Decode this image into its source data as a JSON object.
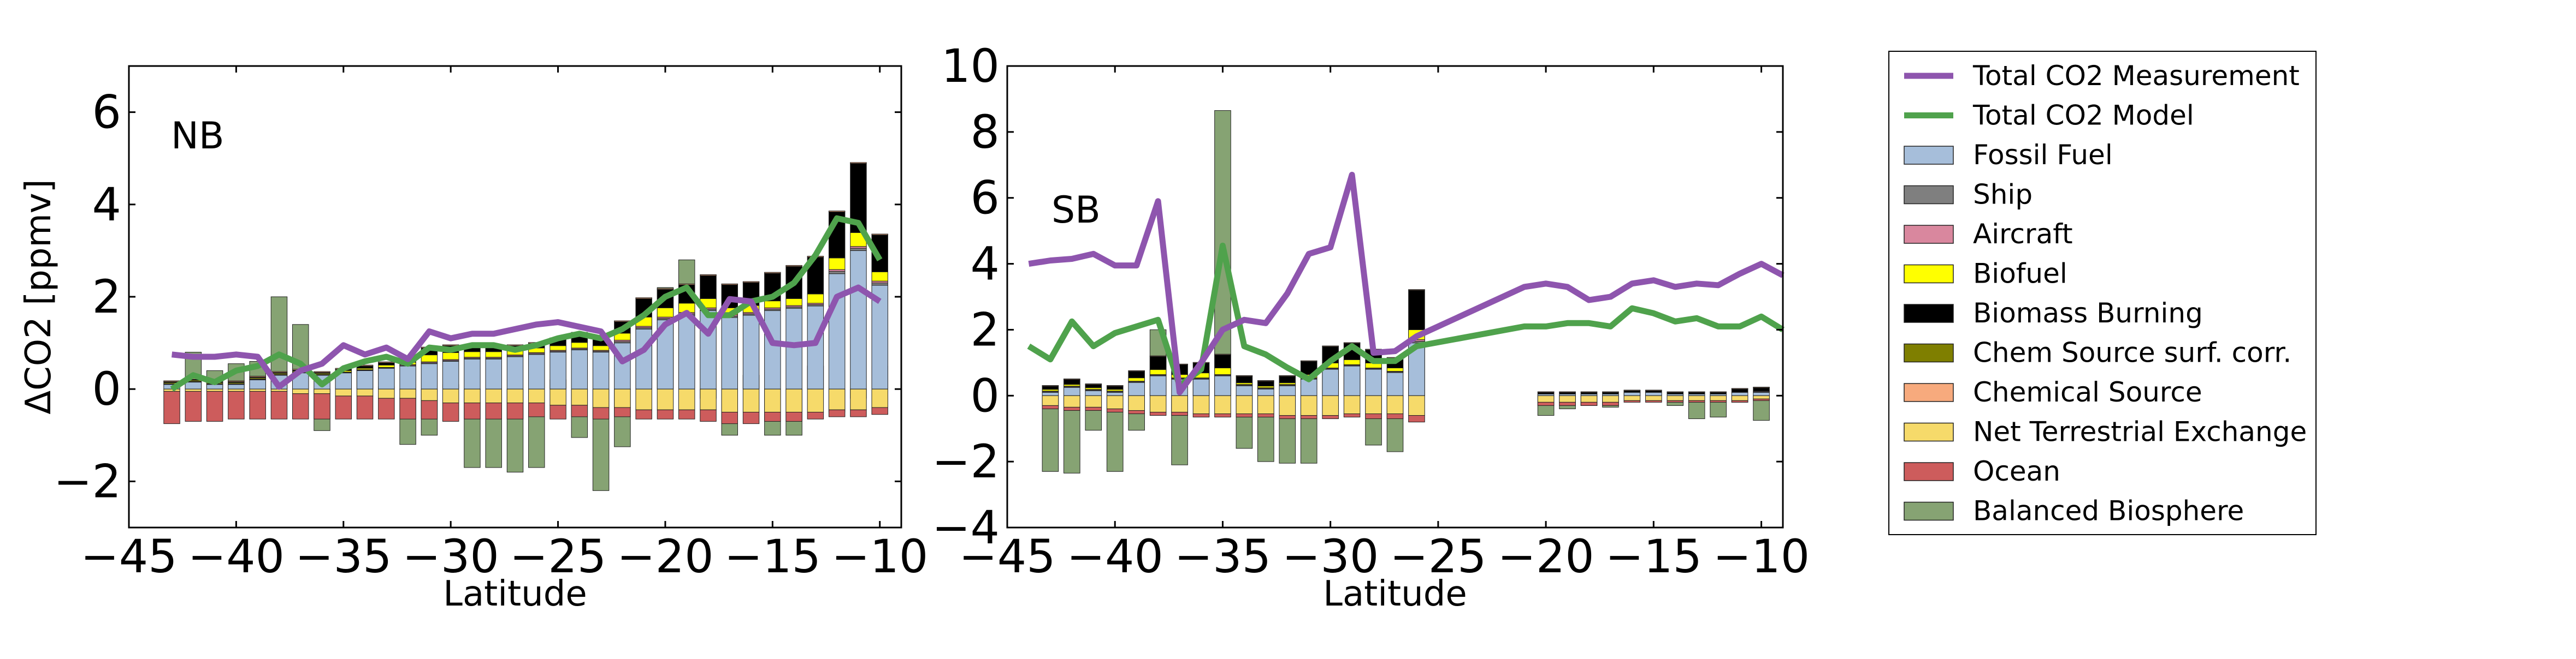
{
  "colors": {
    "measurement": "#8E55AE",
    "model": "#4FA24C",
    "fossil_fuel": "#A6BEDA",
    "ship": "#7F7F7F",
    "aircraft": "#D9879E",
    "biofuel": "#FFFF00",
    "biomass_burning": "#000000",
    "chem_surf_corr": "#7F7F00",
    "chemical_source": "#F7AA7D",
    "net_terrestrial": "#F6DA6A",
    "ocean": "#CD5C5C",
    "balanced_biosphere": "#86A373"
  },
  "legend": {
    "placement": "right, outside plots",
    "entries": [
      {
        "label": "Total CO2 Measurement",
        "kind": "line",
        "color_key": "measurement"
      },
      {
        "label": "Total CO2 Model",
        "kind": "line",
        "color_key": "model"
      },
      {
        "label": "Fossil Fuel",
        "kind": "patch",
        "color_key": "fossil_fuel"
      },
      {
        "label": "Ship",
        "kind": "patch",
        "color_key": "ship"
      },
      {
        "label": "Aircraft",
        "kind": "patch",
        "color_key": "aircraft"
      },
      {
        "label": "Biofuel",
        "kind": "patch",
        "color_key": "biofuel"
      },
      {
        "label": "Biomass Burning",
        "kind": "patch",
        "color_key": "biomass_burning"
      },
      {
        "label": "Chem Source surf. corr.",
        "kind": "patch",
        "color_key": "chem_surf_corr"
      },
      {
        "label": "Chemical Source",
        "kind": "patch",
        "color_key": "chemical_source"
      },
      {
        "label": "Net Terrestrial Exchange",
        "kind": "patch",
        "color_key": "net_terrestrial"
      },
      {
        "label": "Ocean",
        "kind": "patch",
        "color_key": "ocean"
      },
      {
        "label": "Balanced Biosphere",
        "kind": "patch",
        "color_key": "balanced_biosphere"
      }
    ]
  },
  "chart_data": [
    {
      "type": "bar",
      "panel_label": "NB",
      "xlabel": "Latitude",
      "ylabel": "ΔCO2 [ppmv]",
      "xlim": [
        -45,
        -9
      ],
      "ylim": [
        -3,
        7
      ],
      "xticks": [
        -45,
        -40,
        -35,
        -30,
        -25,
        -20,
        -15,
        -10
      ],
      "yticks": [
        -2,
        0,
        2,
        4,
        6
      ],
      "grid": false,
      "bar_width": 0.75,
      "x": [
        -43,
        -42,
        -41,
        -40,
        -39,
        -38,
        -37,
        -36,
        -35,
        -34,
        -33,
        -32,
        -31,
        -30,
        -29,
        -28,
        -27,
        -26,
        -25,
        -24,
        -23,
        -22,
        -21,
        -20,
        -19,
        -18,
        -17,
        -16,
        -15,
        -14,
        -13,
        -12,
        -11,
        -10
      ],
      "stacks": {
        "fossil_fuel": [
          0.1,
          0.15,
          0.1,
          0.1,
          0.2,
          0.3,
          0.35,
          0.3,
          0.35,
          0.4,
          0.45,
          0.5,
          0.55,
          0.6,
          0.65,
          0.65,
          0.7,
          0.75,
          0.8,
          0.85,
          0.8,
          1.0,
          1.3,
          1.5,
          1.6,
          1.7,
          1.55,
          1.6,
          1.7,
          1.75,
          1.8,
          2.5,
          3.0,
          2.25
        ],
        "ship": [
          0.01,
          0.01,
          0.01,
          0.01,
          0.01,
          0.01,
          0.01,
          0.01,
          0.01,
          0.01,
          0.01,
          0.01,
          0.02,
          0.02,
          0.02,
          0.02,
          0.02,
          0.02,
          0.02,
          0.02,
          0.02,
          0.03,
          0.03,
          0.03,
          0.03,
          0.03,
          0.03,
          0.03,
          0.03,
          0.03,
          0.03,
          0.05,
          0.05,
          0.05
        ],
        "aircraft": [
          0.01,
          0.01,
          0.01,
          0.01,
          0.01,
          0.01,
          0.01,
          0.01,
          0.01,
          0.01,
          0.01,
          0.02,
          0.02,
          0.02,
          0.02,
          0.02,
          0.02,
          0.02,
          0.02,
          0.02,
          0.02,
          0.03,
          0.03,
          0.03,
          0.03,
          0.03,
          0.03,
          0.03,
          0.03,
          0.03,
          0.03,
          0.04,
          0.04,
          0.04
        ],
        "biofuel": [
          0.02,
          0.02,
          0.02,
          0.02,
          0.02,
          0.02,
          0.02,
          0.02,
          0.03,
          0.03,
          0.05,
          0.05,
          0.15,
          0.15,
          0.12,
          0.12,
          0.1,
          0.1,
          0.1,
          0.12,
          0.1,
          0.15,
          0.2,
          0.2,
          0.2,
          0.2,
          0.15,
          0.15,
          0.15,
          0.15,
          0.2,
          0.25,
          0.3,
          0.2
        ],
        "biomass_burning": [
          0.02,
          0.02,
          0.02,
          0.02,
          0.02,
          0.02,
          0.02,
          0.02,
          0.03,
          0.05,
          0.05,
          0.08,
          0.15,
          0.15,
          0.12,
          0.12,
          0.1,
          0.1,
          0.15,
          0.2,
          0.15,
          0.25,
          0.4,
          0.4,
          0.4,
          0.5,
          0.5,
          0.5,
          0.6,
          0.7,
          0.8,
          1.0,
          1.5,
          0.8
        ],
        "chem_surf_corr": [
          0,
          0,
          0,
          0,
          0,
          0,
          0,
          0,
          0,
          0,
          0,
          0,
          0,
          0,
          0,
          0,
          0,
          0,
          0,
          0,
          0,
          0,
          0,
          0,
          0,
          0,
          0,
          0,
          0,
          0,
          0,
          0,
          0,
          0
        ],
        "chemical_source": [
          0.02,
          0.02,
          0.02,
          0.02,
          0.02,
          0.02,
          0.02,
          0.02,
          0.02,
          0.02,
          0.02,
          0.02,
          0.02,
          0.02,
          0.02,
          0.02,
          0.02,
          0.02,
          0.02,
          0.02,
          0.02,
          0.02,
          0.02,
          0.02,
          0.02,
          0.02,
          0.02,
          0.02,
          0.02,
          0.02,
          0.02,
          0.02,
          0.02,
          0.02
        ],
        "net_terrestrial": [
          -0.05,
          -0.05,
          -0.05,
          -0.05,
          -0.05,
          -0.05,
          -0.1,
          -0.1,
          -0.15,
          -0.15,
          -0.2,
          -0.2,
          -0.25,
          -0.3,
          -0.3,
          -0.3,
          -0.3,
          -0.3,
          -0.35,
          -0.35,
          -0.4,
          -0.4,
          -0.45,
          -0.45,
          -0.45,
          -0.45,
          -0.5,
          -0.5,
          -0.5,
          -0.5,
          -0.5,
          -0.45,
          -0.45,
          -0.4
        ],
        "ocean": [
          -0.7,
          -0.65,
          -0.65,
          -0.6,
          -0.6,
          -0.6,
          -0.55,
          -0.55,
          -0.5,
          -0.5,
          -0.45,
          -0.45,
          -0.4,
          -0.4,
          -0.35,
          -0.35,
          -0.35,
          -0.3,
          -0.3,
          -0.25,
          -0.25,
          -0.2,
          -0.2,
          -0.2,
          -0.2,
          -0.25,
          -0.25,
          -0.25,
          -0.2,
          -0.2,
          -0.15,
          -0.15,
          -0.15,
          -0.15
        ],
        "balanced_biosphere": [
          0,
          0.8,
          0.4,
          0.55,
          0.6,
          2.0,
          1.4,
          -0.9,
          0.3,
          0.5,
          0.05,
          -1.2,
          -1.0,
          0.1,
          -1.7,
          -1.7,
          -1.8,
          -1.7,
          0.2,
          -1.05,
          -2.2,
          -1.25,
          1.5,
          2.2,
          2.8,
          -0.2,
          -1.0,
          0.3,
          -1.0,
          -1.0,
          0.5,
          -0.5,
          -0.2,
          0.5
        ]
      },
      "series": [
        {
          "name": "Total CO2 Measurement",
          "color_key": "measurement",
          "x": [
            -43,
            -42,
            -41,
            -40,
            -39,
            -38,
            -37,
            -36,
            -35,
            -34,
            -33,
            -32,
            -31,
            -30,
            -29,
            -28,
            -27,
            -26,
            -25,
            -24,
            -23,
            -22,
            -21,
            -20,
            -19,
            -18,
            -17,
            -16,
            -15,
            -14,
            -13,
            -12,
            -11,
            -10
          ],
          "y": [
            0.75,
            0.7,
            0.7,
            0.75,
            0.7,
            0.05,
            0.4,
            0.55,
            0.95,
            0.75,
            0.9,
            0.65,
            1.25,
            1.1,
            1.2,
            1.2,
            1.3,
            1.4,
            1.45,
            1.35,
            1.25,
            0.6,
            0.85,
            1.4,
            1.65,
            1.2,
            1.95,
            1.9,
            1.0,
            0.95,
            1.0,
            2.0,
            2.2,
            1.9
          ]
        },
        {
          "name": "Total CO2 Model",
          "color_key": "model",
          "x": [
            -43,
            -42,
            -41,
            -40,
            -39,
            -38,
            -37,
            -36,
            -35,
            -34,
            -33,
            -32,
            -31,
            -30,
            -29,
            -28,
            -27,
            -26,
            -25,
            -24,
            -23,
            -22,
            -21,
            -20,
            -19,
            -18,
            -17,
            -16,
            -15,
            -14,
            -13,
            -12,
            -11,
            -10
          ],
          "y": [
            0.0,
            0.3,
            0.15,
            0.4,
            0.5,
            0.75,
            0.55,
            0.1,
            0.45,
            0.6,
            0.7,
            0.55,
            0.9,
            0.85,
            0.95,
            0.95,
            0.85,
            0.95,
            1.1,
            1.2,
            1.1,
            1.3,
            1.6,
            2.0,
            2.2,
            1.6,
            1.6,
            1.9,
            2.0,
            2.3,
            2.9,
            3.7,
            3.6,
            2.8
          ]
        }
      ]
    },
    {
      "type": "bar",
      "panel_label": "SB",
      "xlabel": "Latitude",
      "ylabel": "",
      "xlim": [
        -45,
        -9
      ],
      "ylim": [
        -4,
        10
      ],
      "xticks": [
        -45,
        -40,
        -35,
        -30,
        -25,
        -20,
        -15,
        -10
      ],
      "yticks": [
        -4,
        -2,
        0,
        2,
        4,
        6,
        8,
        10
      ],
      "grid": false,
      "bar_width": 0.75,
      "x": [
        -43,
        -42,
        -41,
        -40,
        -39,
        -38,
        -37,
        -36,
        -35,
        -34,
        -33,
        -32,
        -31,
        -30,
        -29,
        -28,
        -27,
        -26,
        -20,
        -19,
        -18,
        -17,
        -16,
        -15,
        -14,
        -13,
        -12,
        -11,
        -10
      ],
      "stacks": {
        "fossil_fuel": [
          0.1,
          0.25,
          0.15,
          0.1,
          0.4,
          0.6,
          0.5,
          0.5,
          0.6,
          0.3,
          0.2,
          0.3,
          0.5,
          0.8,
          0.9,
          0.8,
          0.7,
          1.6,
          0.05,
          0.05,
          0.05,
          0.05,
          0.1,
          0.1,
          0.05,
          0.05,
          0.05,
          0.1,
          0.1
        ],
        "ship": [
          0.02,
          0.02,
          0.02,
          0.02,
          0.02,
          0.02,
          0.02,
          0.02,
          0.02,
          0.02,
          0.02,
          0.02,
          0.02,
          0.02,
          0.02,
          0.02,
          0.02,
          0.05,
          0,
          0,
          0,
          0,
          0,
          0,
          0,
          0,
          0,
          0,
          0.02
        ],
        "aircraft": [
          0.02,
          0.02,
          0.02,
          0.02,
          0.02,
          0.02,
          0.02,
          0.02,
          0.02,
          0.02,
          0.02,
          0.02,
          0.02,
          0.02,
          0.02,
          0.02,
          0.02,
          0.05,
          0,
          0,
          0,
          0,
          0,
          0,
          0,
          0,
          0,
          0,
          0.02
        ],
        "biofuel": [
          0.05,
          0.05,
          0.05,
          0.05,
          0.1,
          0.15,
          0.1,
          0.15,
          0.2,
          0.05,
          0.05,
          0.05,
          0.1,
          0.15,
          0.15,
          0.15,
          0.1,
          0.3,
          0,
          0,
          0,
          0,
          0,
          0,
          0,
          0,
          0,
          0,
          0
        ],
        "biomass_burning": [
          0.1,
          0.15,
          0.1,
          0.1,
          0.2,
          0.4,
          0.3,
          0.3,
          0.4,
          0.2,
          0.15,
          0.2,
          0.4,
          0.5,
          0.5,
          0.4,
          0.3,
          1.2,
          0.05,
          0.05,
          0.05,
          0.05,
          0.05,
          0.05,
          0.05,
          0.05,
          0.05,
          0.1,
          0.1
        ],
        "chem_surf_corr": [
          0,
          0,
          0,
          0,
          0,
          0,
          0,
          0,
          0,
          0,
          0,
          0,
          0,
          0,
          0,
          0,
          0,
          0,
          0,
          0,
          0,
          0,
          0,
          0,
          0,
          0,
          0,
          0,
          0
        ],
        "chemical_source": [
          0.02,
          0.02,
          0.02,
          0.02,
          0.02,
          0.02,
          0.02,
          0.02,
          0.02,
          0.02,
          0.02,
          0.02,
          0.02,
          0.02,
          0.02,
          0.02,
          0.02,
          0.02,
          0.02,
          0.02,
          0.02,
          0.02,
          0.02,
          0.02,
          0.02,
          0.02,
          0.02,
          0.02,
          0.02
        ],
        "net_terrestrial": [
          -0.3,
          -0.35,
          -0.35,
          -0.4,
          -0.45,
          -0.5,
          -0.5,
          -0.55,
          -0.55,
          -0.55,
          -0.55,
          -0.6,
          -0.6,
          -0.6,
          -0.55,
          -0.55,
          -0.55,
          -0.6,
          -0.2,
          -0.2,
          -0.2,
          -0.2,
          -0.15,
          -0.15,
          -0.15,
          -0.15,
          -0.15,
          -0.15,
          -0.1
        ],
        "ocean": [
          -0.1,
          -0.1,
          -0.1,
          -0.1,
          -0.1,
          -0.1,
          -0.1,
          -0.1,
          -0.1,
          -0.1,
          -0.1,
          -0.1,
          -0.1,
          -0.1,
          -0.1,
          -0.15,
          -0.15,
          -0.2,
          -0.1,
          -0.1,
          -0.1,
          -0.1,
          -0.05,
          -0.05,
          -0.05,
          -0.05,
          -0.05,
          -0.05,
          -0.05
        ],
        "balanced_biosphere": [
          -2.3,
          -2.35,
          -1.05,
          -2.3,
          -1.05,
          2.0,
          -2.1,
          0.75,
          8.65,
          -1.6,
          -2.0,
          -2.05,
          -2.05,
          1.0,
          0.8,
          -1.5,
          -1.7,
          2.0,
          -0.6,
          -0.4,
          -0.3,
          -0.35,
          0.15,
          0.05,
          -0.3,
          -0.7,
          -0.65,
          -0.2,
          -0.75
        ]
      },
      "series": [
        {
          "name": "Total CO2 Measurement",
          "color_key": "measurement",
          "x": [
            -44,
            -43,
            -42,
            -41,
            -40,
            -39,
            -38,
            -37,
            -36,
            -35,
            -34,
            -33,
            -32,
            -31,
            -30,
            -29,
            -28,
            -27,
            -26,
            -21,
            -20,
            -19,
            -18,
            -17,
            -16,
            -15,
            -14,
            -13,
            -12,
            -11,
            -10,
            -9
          ],
          "y": [
            4.0,
            4.1,
            4.15,
            4.3,
            3.95,
            3.95,
            5.9,
            0.1,
            1.0,
            2.0,
            2.3,
            2.2,
            3.1,
            4.3,
            4.5,
            6.7,
            1.3,
            1.35,
            1.8,
            3.3,
            3.4,
            3.3,
            2.9,
            3.0,
            3.4,
            3.5,
            3.3,
            3.4,
            3.35,
            3.7,
            4.0,
            3.65
          ]
        },
        {
          "name": "Total CO2 Model",
          "color_key": "model",
          "x": [
            -44,
            -43,
            -42,
            -41,
            -40,
            -39,
            -38,
            -37,
            -36,
            -35,
            -34,
            -33,
            -32,
            -31,
            -30,
            -29,
            -28,
            -27,
            -26,
            -21,
            -20,
            -19,
            -18,
            -17,
            -16,
            -15,
            -14,
            -13,
            -12,
            -11,
            -10,
            -9
          ],
          "y": [
            1.5,
            1.1,
            2.25,
            1.5,
            1.9,
            2.1,
            2.3,
            0.3,
            0.8,
            4.55,
            1.5,
            1.25,
            0.85,
            0.5,
            1.05,
            1.5,
            1.05,
            1.05,
            1.5,
            2.1,
            2.1,
            2.2,
            2.2,
            2.1,
            2.65,
            2.5,
            2.25,
            2.35,
            2.1,
            2.1,
            2.4,
            2.0
          ]
        }
      ]
    }
  ]
}
